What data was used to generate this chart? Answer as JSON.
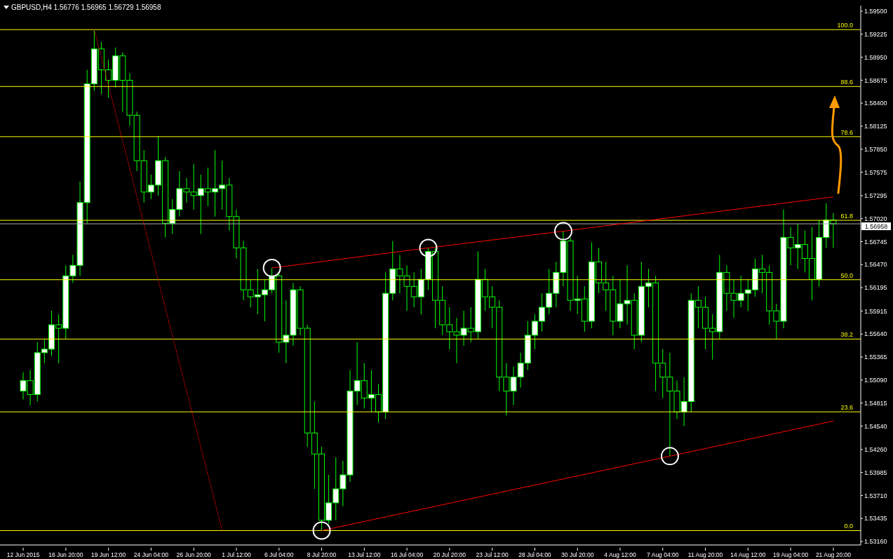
{
  "chart_data": {
    "type": "candlestick",
    "title": "GBPUSD,H4 1.56776 1.56965 1.56729 1.56958",
    "categories": [
      "12 Jun 2015",
      null,
      null,
      null,
      null,
      null,
      "16 Jun 20:00",
      null,
      null,
      null,
      null,
      null,
      "19 Jun 12:00",
      null,
      null,
      null,
      null,
      null,
      "24 Jun 04:00",
      null,
      null,
      null,
      null,
      null,
      "26 Jun 20:00",
      null,
      null,
      null,
      null,
      null,
      "1 Jul 12:00",
      null,
      null,
      null,
      null,
      null,
      "6 Jul 04:00",
      null,
      null,
      null,
      null,
      null,
      "8 Jul 20:00",
      null,
      null,
      null,
      null,
      null,
      "13 Jul 12:00",
      null,
      null,
      null,
      null,
      null,
      "16 Jul 04:00",
      null,
      null,
      null,
      null,
      null,
      "20 Jul 20:00",
      null,
      null,
      null,
      null,
      null,
      "23 Jul 12:00",
      null,
      null,
      null,
      null,
      null,
      "28 Jul 04:00",
      null,
      null,
      null,
      null,
      null,
      "30 Jul 20:00",
      null,
      null,
      null,
      null,
      null,
      "4 Aug 12:00",
      null,
      null,
      null,
      null,
      null,
      "7 Aug 04:00",
      null,
      null,
      null,
      null,
      null,
      "11 Aug 20:00",
      null,
      null,
      null,
      null,
      null,
      "14 Aug 12:00",
      null,
      null,
      null,
      null,
      null,
      "19 Aug 04:00",
      null,
      null,
      null,
      null,
      null,
      "21 Aug 20:00"
    ],
    "series": [
      {
        "type": "candlestick",
        "color": "#00ff00",
        "ohlc": [
          [
            1.54958,
            1.55183,
            1.54858,
            1.55083
          ],
          [
            1.55083,
            1.55208,
            1.54791,
            1.54916
          ],
          [
            1.54916,
            1.55542,
            1.54833,
            1.55417
          ],
          [
            1.55417,
            1.55584,
            1.55292,
            1.55459
          ],
          [
            1.55459,
            1.55918,
            1.55375,
            1.55751
          ],
          [
            1.55751,
            1.55876,
            1.55292,
            1.55709
          ],
          [
            1.55709,
            1.56461,
            1.55584,
            1.56336
          ],
          [
            1.56336,
            1.56586,
            1.56252,
            1.56461
          ],
          [
            1.56461,
            1.57463,
            1.56336,
            1.57212
          ],
          [
            1.57212,
            1.58799,
            1.56962,
            1.58632
          ],
          [
            1.58632,
            1.59275,
            1.58548,
            1.59049
          ],
          [
            1.59049,
            1.59133,
            1.58507,
            1.58799
          ],
          [
            1.58799,
            1.58924,
            1.58465,
            1.58674
          ],
          [
            1.58674,
            1.59066,
            1.5859,
            1.58966
          ],
          [
            1.58966,
            1.59008,
            1.58298,
            1.58674
          ],
          [
            1.58674,
            1.58757,
            1.58131,
            1.58256
          ],
          [
            1.58256,
            1.58298,
            1.57588,
            1.57713
          ],
          [
            1.57713,
            1.57839,
            1.57212,
            1.57338
          ],
          [
            1.57338,
            1.57546,
            1.57254,
            1.57421
          ],
          [
            1.57421,
            1.58006,
            1.57296,
            1.57713
          ],
          [
            1.57713,
            1.57755,
            1.56795,
            1.56962
          ],
          [
            1.56962,
            1.57254,
            1.56837,
            1.57129
          ],
          [
            1.57129,
            1.57588,
            1.57045,
            1.57379
          ],
          [
            1.57379,
            1.57505,
            1.57212,
            1.57338
          ],
          [
            1.57338,
            1.57672,
            1.57129,
            1.57296
          ],
          [
            1.57296,
            1.57546,
            1.56837,
            1.57379
          ],
          [
            1.57379,
            1.5763,
            1.57171,
            1.57338
          ],
          [
            1.57338,
            1.57839,
            1.57045,
            1.57379
          ],
          [
            1.57379,
            1.57713,
            1.57129,
            1.57421
          ],
          [
            1.57421,
            1.57505,
            1.56878,
            1.57045
          ],
          [
            1.57045,
            1.57129,
            1.56544,
            1.5667
          ],
          [
            1.5667,
            1.56753,
            1.56043,
            1.56169
          ],
          [
            1.56169,
            1.56294,
            1.5596,
            1.56085
          ],
          [
            1.56085,
            1.56419,
            1.55876,
            1.5611
          ],
          [
            1.5611,
            1.56294,
            1.55793,
            1.56169
          ],
          [
            1.56169,
            1.56428,
            1.56127,
            1.56336
          ],
          [
            1.56336,
            1.56377,
            1.55417,
            1.55542
          ],
          [
            1.55542,
            1.56043,
            1.55292,
            1.55626
          ],
          [
            1.55626,
            1.56252,
            1.55501,
            1.56169
          ],
          [
            1.56169,
            1.5621,
            1.55626,
            1.55709
          ],
          [
            1.55709,
            1.55751,
            1.5429,
            1.54457
          ],
          [
            1.54457,
            1.54833,
            1.53789,
            1.54206
          ],
          [
            1.54206,
            1.5429,
            1.53288,
            1.53413
          ],
          [
            1.53413,
            1.53956,
            1.53371,
            1.53622
          ],
          [
            1.53622,
            1.54165,
            1.53413,
            1.53789
          ],
          [
            1.53789,
            1.54123,
            1.5358,
            1.53956
          ],
          [
            1.53956,
            1.55208,
            1.53872,
            1.54958
          ],
          [
            1.54958,
            1.55542,
            1.54791,
            1.55083
          ],
          [
            1.55083,
            1.55292,
            1.54749,
            1.54874
          ],
          [
            1.54874,
            1.55208,
            1.54707,
            1.54916
          ],
          [
            1.54916,
            1.55041,
            1.54582,
            1.54707
          ],
          [
            1.54707,
            1.56377,
            1.54624,
            1.56127
          ],
          [
            1.56127,
            1.56753,
            1.56043,
            1.56419
          ],
          [
            1.56419,
            1.56586,
            1.56127,
            1.56336
          ],
          [
            1.56336,
            1.56461,
            1.55918,
            1.5621
          ],
          [
            1.5621,
            1.56377,
            1.5596,
            1.56085
          ],
          [
            1.56085,
            1.56419,
            1.55876,
            1.56294
          ],
          [
            1.56294,
            1.56666,
            1.56169,
            1.56628
          ],
          [
            1.56628,
            1.5667,
            1.55709,
            1.56043
          ],
          [
            1.56043,
            1.5621,
            1.55626,
            1.55751
          ],
          [
            1.55751,
            1.5596,
            1.55459,
            1.55668
          ],
          [
            1.55668,
            1.55835,
            1.55292,
            1.55626
          ],
          [
            1.55626,
            1.55918,
            1.55501,
            1.55709
          ],
          [
            1.55709,
            1.5596,
            1.55542,
            1.55668
          ],
          [
            1.55668,
            1.56628,
            1.55584,
            1.56294
          ],
          [
            1.56294,
            1.56419,
            1.55918,
            1.56085
          ],
          [
            1.56085,
            1.5621,
            1.55709,
            1.5596
          ],
          [
            1.5596,
            1.56043,
            1.54958,
            1.55125
          ],
          [
            1.55125,
            1.55292,
            1.54666,
            1.54958
          ],
          [
            1.54958,
            1.5525,
            1.54791,
            1.55125
          ],
          [
            1.55125,
            1.55417,
            1.55,
            1.55292
          ],
          [
            1.55292,
            1.55793,
            1.55208,
            1.55626
          ],
          [
            1.55626,
            1.55876,
            1.55459,
            1.55793
          ],
          [
            1.55793,
            1.56127,
            1.55668,
            1.5596
          ],
          [
            1.5596,
            1.56419,
            1.55876,
            1.56127
          ],
          [
            1.56127,
            1.56503,
            1.5596,
            1.56377
          ],
          [
            1.56377,
            1.56872,
            1.5621,
            1.56753
          ],
          [
            1.56753,
            1.56795,
            1.55918,
            1.56043
          ],
          [
            1.56043,
            1.56336,
            1.55876,
            1.5606
          ],
          [
            1.5606,
            1.5621,
            1.55668,
            1.55793
          ],
          [
            1.55793,
            1.56737,
            1.55709,
            1.56503
          ],
          [
            1.56503,
            1.5667,
            1.56127,
            1.56252
          ],
          [
            1.56252,
            1.56503,
            1.55918,
            1.56169
          ],
          [
            1.56169,
            1.56336,
            1.55626,
            1.55793
          ],
          [
            1.55793,
            1.56294,
            1.55709,
            1.56002
          ],
          [
            1.56002,
            1.56461,
            1.55751,
            1.56043
          ],
          [
            1.56043,
            1.56127,
            1.55459,
            1.55626
          ],
          [
            1.55626,
            1.56503,
            1.55542,
            1.5621
          ],
          [
            1.5621,
            1.56419,
            1.5596,
            1.56252
          ],
          [
            1.56252,
            1.56336,
            1.54958,
            1.55292
          ],
          [
            1.55292,
            1.55459,
            1.54874,
            1.55125
          ],
          [
            1.55125,
            1.55417,
            1.54179,
            1.54958
          ],
          [
            1.54958,
            1.55083,
            1.54624,
            1.54707
          ],
          [
            1.54707,
            1.55125,
            1.5454,
            1.54833
          ],
          [
            1.54833,
            1.56127,
            1.54707,
            1.56043
          ],
          [
            1.56043,
            1.5621,
            1.55709,
            1.5596
          ],
          [
            1.5596,
            1.56085,
            1.55459,
            1.55709
          ],
          [
            1.55709,
            1.55876,
            1.55334,
            1.55668
          ],
          [
            1.55668,
            1.56586,
            1.55584,
            1.56377
          ],
          [
            1.56377,
            1.56461,
            1.55918,
            1.56127
          ],
          [
            1.56127,
            1.56294,
            1.55835,
            1.56043
          ],
          [
            1.56043,
            1.56336,
            1.5596,
            1.56127
          ],
          [
            1.56127,
            1.56294,
            1.55918,
            1.56169
          ],
          [
            1.56169,
            1.56544,
            1.56085,
            1.56419
          ],
          [
            1.56419,
            1.56586,
            1.56127,
            1.56377
          ],
          [
            1.56377,
            1.56461,
            1.55751,
            1.55918
          ],
          [
            1.55918,
            1.56002,
            1.55584,
            1.55793
          ],
          [
            1.55793,
            1.57129,
            1.55709,
            1.56795
          ],
          [
            1.56795,
            1.5692,
            1.56461,
            1.5667
          ],
          [
            1.5667,
            1.56962,
            1.56419,
            1.56711
          ],
          [
            1.56711,
            1.56878,
            1.56377,
            1.56544
          ],
          [
            1.56544,
            1.5692,
            1.56043,
            1.56294
          ],
          [
            1.56294,
            1.57004,
            1.5621,
            1.56795
          ],
          [
            1.56795,
            1.57204,
            1.5667,
            1.57004
          ],
          [
            1.57004,
            1.57087,
            1.5667,
            1.56958
          ]
        ]
      },
      {
        "type": "line",
        "color": "#ff0000",
        "marker": "circle",
        "line_style": "solid",
        "values": [
          null,
          null,
          null,
          null,
          null,
          null,
          null,
          null,
          null,
          null,
          null,
          null,
          null,
          null,
          null,
          null,
          null,
          null,
          null,
          null,
          null,
          null,
          null,
          null,
          null,
          null,
          null,
          null,
          null,
          null,
          null,
          null,
          null,
          null,
          null,
          1.5643,
          null,
          null,
          null,
          null,
          null,
          null,
          null,
          null,
          null,
          null,
          null,
          null,
          null,
          null,
          null,
          null,
          null,
          null,
          null,
          null,
          null,
          1.5667,
          null,
          null,
          null,
          null,
          null,
          null,
          null,
          null,
          null,
          null,
          null,
          null,
          null,
          null,
          null,
          null,
          null,
          null,
          1.5687,
          null,
          null,
          null,
          null,
          null,
          null,
          null,
          null,
          null,
          null,
          null,
          null,
          null,
          null,
          null,
          null,
          null,
          null,
          null,
          null,
          null,
          null,
          null,
          null,
          null,
          null,
          null,
          null,
          null,
          null,
          null,
          null,
          null,
          null,
          null,
          null,
          null,
          1.5728
        ]
      },
      {
        "type": "line",
        "color": "#ff0000",
        "marker": "circle",
        "line_style": "solid",
        "values": [
          null,
          null,
          null,
          null,
          null,
          null,
          null,
          null,
          null,
          null,
          null,
          null,
          null,
          null,
          null,
          null,
          null,
          null,
          null,
          null,
          null,
          null,
          null,
          null,
          null,
          null,
          null,
          null,
          null,
          null,
          null,
          null,
          null,
          null,
          null,
          null,
          null,
          null,
          null,
          null,
          null,
          null,
          1.5329,
          null,
          null,
          null,
          null,
          null,
          null,
          null,
          null,
          null,
          null,
          null,
          null,
          null,
          null,
          null,
          null,
          null,
          null,
          null,
          null,
          null,
          null,
          null,
          null,
          null,
          null,
          null,
          null,
          null,
          null,
          null,
          null,
          null,
          null,
          null,
          null,
          null,
          null,
          null,
          null,
          null,
          null,
          null,
          null,
          null,
          null,
          null,
          null,
          1.5418,
          null,
          null,
          null,
          null,
          null,
          null,
          null,
          null,
          null,
          null,
          null,
          null,
          null,
          null,
          null,
          null,
          null,
          null,
          null,
          null,
          null,
          null,
          1.546
        ]
      },
      {
        "type": "line",
        "color": "#ff0000",
        "line_style": "dotted",
        "values": [
          null,
          null,
          null,
          null,
          null,
          null,
          null,
          null,
          null,
          null,
          1.5928,
          null,
          null,
          null,
          null,
          null,
          null,
          null,
          null,
          null,
          null,
          null,
          null,
          null,
          null,
          null,
          null,
          null,
          1.5329,
          null,
          null,
          null,
          null,
          null,
          null,
          null,
          null,
          null,
          null,
          null,
          null,
          null,
          null,
          null,
          null,
          null,
          null,
          null,
          null,
          null,
          null,
          null,
          null,
          null,
          null,
          null,
          null,
          null,
          null,
          null,
          null,
          null,
          null,
          null,
          null,
          null,
          null,
          null,
          null,
          null,
          null,
          null,
          null,
          null,
          null,
          null,
          null,
          null,
          null,
          null,
          null,
          null,
          null,
          null,
          null,
          null,
          null,
          null,
          null,
          null,
          null,
          null,
          null,
          null,
          null,
          null,
          null,
          null,
          null,
          null,
          null,
          null,
          null,
          null,
          null,
          null,
          null,
          null,
          null,
          null,
          null,
          null,
          null,
          null,
          null
        ]
      }
    ],
    "ylim": [
      1.53118,
      1.59567
    ],
    "yticks": [
      {
        "value": 1.595,
        "label": "1.59500"
      },
      {
        "value": 1.59225,
        "label": "1.59225"
      },
      {
        "value": 1.5895,
        "label": "1.58950"
      },
      {
        "value": 1.58675,
        "label": "1.58675"
      },
      {
        "value": 1.584,
        "label": "1.58400"
      },
      {
        "value": 1.58125,
        "label": "1.58125"
      },
      {
        "value": 1.5785,
        "label": "1.57850"
      },
      {
        "value": 1.57575,
        "label": "1.57575"
      },
      {
        "value": 1.57295,
        "label": "1.57295"
      },
      {
        "value": 1.5702,
        "label": "1.57020"
      },
      {
        "value": 1.56745,
        "label": "1.56745"
      },
      {
        "value": 1.5647,
        "label": "1.56470"
      },
      {
        "value": 1.56195,
        "label": "1.56195"
      },
      {
        "value": 1.55915,
        "label": "1.55915"
      },
      {
        "value": 1.5564,
        "label": "1.55640"
      },
      {
        "value": 1.55365,
        "label": "1.55365"
      },
      {
        "value": 1.5509,
        "label": "1.55090"
      },
      {
        "value": 1.54815,
        "label": "1.54815"
      },
      {
        "value": 1.5454,
        "label": "1.54540"
      },
      {
        "value": 1.5426,
        "label": "1.54260"
      },
      {
        "value": 1.53985,
        "label": "1.53985"
      },
      {
        "value": 1.5371,
        "label": "1.53710"
      },
      {
        "value": 1.53435,
        "label": "1.53435"
      },
      {
        "value": 1.5316,
        "label": "1.53160"
      }
    ],
    "ref_lines": [
      {
        "axis": "y",
        "value": 1.5928,
        "color": "#ffff00"
      },
      {
        "axis": "y",
        "value": 1.586,
        "color": "#ffff00"
      },
      {
        "axis": "y",
        "value": 1.58,
        "color": "#ffff00"
      },
      {
        "axis": "y",
        "value": 1.57,
        "color": "#ffff00"
      },
      {
        "axis": "y",
        "value": 1.5629,
        "color": "#ffff00"
      },
      {
        "axis": "y",
        "value": 1.5558,
        "color": "#ffff00"
      },
      {
        "axis": "y",
        "value": 1.5471,
        "color": "#ffff00"
      },
      {
        "axis": "y",
        "value": 1.5329,
        "color": "#ffff00"
      },
      {
        "axis": "y",
        "value": 1.56958,
        "label": "1.56958",
        "color": "#a8a8a8"
      }
    ],
    "annotations": [
      {
        "text": "100.0",
        "y": 1.5928
      },
      {
        "text": "88.6",
        "y": 1.586
      },
      {
        "text": "78.6",
        "y": 1.58
      },
      {
        "text": "61.8",
        "y": 1.57
      },
      {
        "text": "50.0",
        "y": 1.5629
      },
      {
        "text": "38.2",
        "y": 1.5558
      },
      {
        "text": "23.6",
        "y": 1.5471
      },
      {
        "text": "0.0",
        "y": 1.5329
      }
    ],
    "grid": false
  }
}
